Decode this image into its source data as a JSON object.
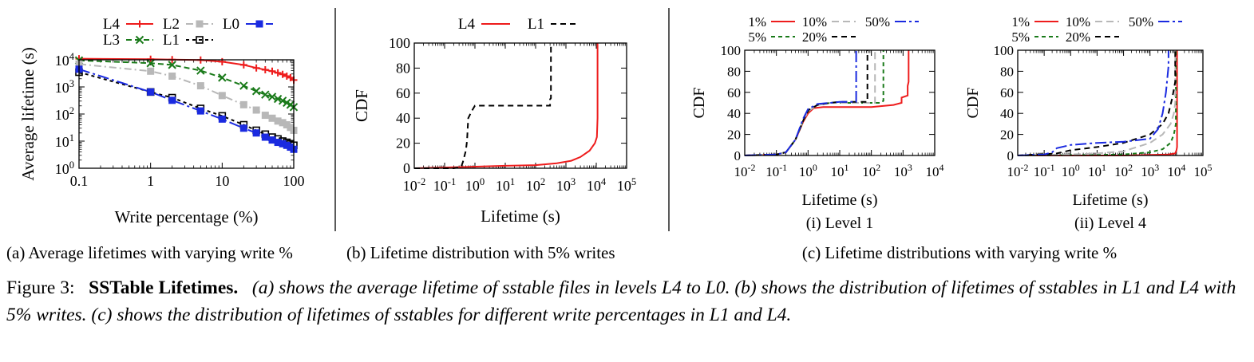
{
  "colors": {
    "L4": "#ee1c1c",
    "L3": "#1a7a1a",
    "L2": "#b8b8b8",
    "L1": "#000000",
    "L0": "#1a2ae0",
    "p1": "#ee1c1c",
    "p5": "#1a7a1a",
    "p10": "#b8b8b8",
    "p20": "#000000",
    "p50": "#1a2ae0"
  },
  "subcaptions": {
    "a": "(a) Average lifetimes with varying write %",
    "b": "(b) Lifetime distribution with 5% writes",
    "c": "(c) Lifetime distributions with varying write %",
    "c1": "(i) Level 1",
    "c2": "(ii) Level 4"
  },
  "figure_caption": {
    "label": "Figure 3:",
    "title": "SSTable Lifetimes.",
    "text": "(a) shows the average lifetime of sstable files in levels L4 to L0. (b) shows the distribution of lifetimes of sstables in L1 and L4 with 5% writes. (c) shows the distribution of lifetimes of sstables for different write percentages in L1 and L4."
  },
  "chart_data": [
    {
      "id": "a",
      "type": "line",
      "title": "",
      "xlabel": "Write percentage (%)",
      "ylabel": "Average lifetime (s)",
      "xscale": "log",
      "yscale": "log",
      "xlim": [
        0.1,
        100
      ],
      "ylim": [
        1,
        10000
      ],
      "xticks": [
        {
          "v": 0.1,
          "t": "0.1"
        },
        {
          "v": 1,
          "t": "1"
        },
        {
          "v": 10,
          "t": "10"
        },
        {
          "v": 100,
          "t": "100"
        }
      ],
      "yticks": [
        {
          "v": 1,
          "b": "10",
          "e": "0"
        },
        {
          "v": 10,
          "b": "10",
          "e": "1"
        },
        {
          "v": 100,
          "b": "10",
          "e": "2"
        },
        {
          "v": 1000,
          "b": "10",
          "e": "3"
        },
        {
          "v": 10000,
          "b": "10",
          "e": "4"
        }
      ],
      "legend_position": "top",
      "series": [
        {
          "name": "L4",
          "color_key": "L4",
          "marker": "plus",
          "dash": "",
          "x": [
            0.1,
            1,
            2,
            5,
            10,
            20,
            30,
            40,
            50,
            60,
            70,
            80,
            90,
            100
          ],
          "y": [
            11000,
            10500,
            10200,
            9800,
            8500,
            6500,
            5000,
            4300,
            3800,
            3300,
            2900,
            2500,
            2200,
            1800
          ]
        },
        {
          "name": "L3",
          "color_key": "L3",
          "marker": "x",
          "dash": "7,4",
          "x": [
            0.1,
            1,
            2,
            5,
            10,
            20,
            30,
            40,
            50,
            60,
            70,
            80,
            90,
            100
          ],
          "y": [
            9500,
            7500,
            6500,
            4000,
            2200,
            1100,
            700,
            520,
            430,
            360,
            310,
            260,
            220,
            180
          ]
        },
        {
          "name": "L2",
          "color_key": "L2",
          "marker": "square-filled",
          "dash": "9,4,2,4",
          "x": [
            0.1,
            1,
            2,
            5,
            10,
            20,
            30,
            40,
            50,
            60,
            70,
            80,
            90,
            100
          ],
          "y": [
            7000,
            3800,
            2500,
            1100,
            480,
            220,
            140,
            90,
            70,
            55,
            48,
            40,
            32,
            25
          ]
        },
        {
          "name": "L1",
          "color_key": "L1",
          "marker": "square-open",
          "dash": "4,4",
          "x": [
            0.1,
            1,
            2,
            5,
            10,
            20,
            30,
            40,
            50,
            60,
            70,
            80,
            90,
            100
          ],
          "y": [
            3500,
            650,
            400,
            160,
            85,
            40,
            25,
            18,
            14,
            12,
            10,
            9,
            8,
            7
          ]
        },
        {
          "name": "L0",
          "color_key": "L0",
          "marker": "square-filled",
          "dash": "14,4,3,4",
          "x": [
            0.1,
            1,
            2,
            5,
            10,
            20,
            30,
            40,
            50,
            60,
            70,
            80,
            90,
            100
          ],
          "y": [
            4500,
            650,
            320,
            130,
            65,
            30,
            20,
            14,
            11,
            9,
            8,
            7,
            6,
            5
          ]
        }
      ]
    },
    {
      "id": "b",
      "type": "line",
      "title": "",
      "xlabel": "Lifetime (s)",
      "ylabel": "CDF",
      "xscale": "log",
      "yscale": "linear",
      "xlim": [
        0.01,
        100000
      ],
      "ylim": [
        0,
        100
      ],
      "xticks": [
        {
          "v": 0.01,
          "b": "10",
          "e": "-2"
        },
        {
          "v": 0.1,
          "b": "10",
          "e": "-1"
        },
        {
          "v": 1,
          "b": "10",
          "e": "0"
        },
        {
          "v": 10,
          "b": "10",
          "e": "1"
        },
        {
          "v": 100,
          "b": "10",
          "e": "2"
        },
        {
          "v": 1000,
          "b": "10",
          "e": "3"
        },
        {
          "v": 10000,
          "b": "10",
          "e": "4"
        },
        {
          "v": 100000,
          "b": "10",
          "e": "5"
        }
      ],
      "yticks": [
        0,
        20,
        40,
        60,
        80,
        100
      ],
      "legend_position": "top",
      "series": [
        {
          "name": "L4",
          "color_key": "L4",
          "dash": "",
          "x": [
            0.01,
            0.5,
            10,
            100,
            500,
            1500,
            3000,
            6000,
            9000,
            10500,
            11000,
            11000
          ],
          "y": [
            0,
            1,
            2,
            2.5,
            4,
            6,
            9,
            14,
            20,
            25,
            40,
            100
          ]
        },
        {
          "name": "L1",
          "color_key": "L1",
          "dash": "7,5",
          "x": [
            0.01,
            0.2,
            0.35,
            0.4,
            0.5,
            0.55,
            0.6,
            0.8,
            1,
            300,
            300,
            320,
            320
          ],
          "y": [
            0,
            0,
            1,
            5,
            14,
            22,
            40,
            46,
            50,
            50,
            55,
            56,
            100
          ]
        }
      ]
    },
    {
      "id": "c1",
      "type": "line",
      "title": "(i) Level 1",
      "xlabel": "Lifetime (s)",
      "ylabel": "CDF",
      "xscale": "log",
      "yscale": "linear",
      "xlim": [
        0.01,
        10000
      ],
      "ylim": [
        0,
        100
      ],
      "xticks": [
        {
          "v": 0.01,
          "b": "10",
          "e": "-2"
        },
        {
          "v": 0.1,
          "b": "10",
          "e": "-1"
        },
        {
          "v": 1,
          "b": "10",
          "e": "0"
        },
        {
          "v": 10,
          "b": "10",
          "e": "1"
        },
        {
          "v": 100,
          "b": "10",
          "e": "2"
        },
        {
          "v": 1000,
          "b": "10",
          "e": "3"
        },
        {
          "v": 10000,
          "b": "10",
          "e": "4"
        }
      ],
      "yticks": [
        0,
        20,
        40,
        60,
        80,
        100
      ],
      "legend": [
        [
          "1%",
          "10%",
          "50%"
        ],
        [
          "5%",
          "20%"
        ]
      ],
      "series": [
        {
          "name": "1%",
          "color_key": "p1",
          "dash": "",
          "x": [
            0.01,
            0.1,
            0.2,
            0.4,
            0.7,
            1,
            1.5,
            3,
            10,
            100,
            500,
            900,
            900,
            1400,
            1400,
            1500,
            1500
          ],
          "y": [
            0,
            1,
            3,
            15,
            32,
            40,
            45,
            46,
            46,
            46,
            48,
            50,
            55,
            57,
            66,
            70,
            100
          ]
        },
        {
          "name": "5%",
          "color_key": "p5",
          "dash": "5,4",
          "x": [
            0.01,
            0.1,
            0.2,
            0.4,
            0.7,
            1,
            2,
            5,
            10,
            100,
            200,
            240,
            240
          ],
          "y": [
            0,
            1,
            3,
            15,
            33,
            42,
            48,
            50,
            50,
            50,
            50,
            52,
            100
          ]
        },
        {
          "name": "10%",
          "color_key": "p10",
          "dash": "9,5",
          "x": [
            0.01,
            0.1,
            0.2,
            0.4,
            0.7,
            1,
            2,
            5,
            10,
            100,
            130,
            130
          ],
          "y": [
            0,
            1,
            3,
            15,
            33,
            42,
            48,
            50,
            50,
            50,
            50,
            100
          ]
        },
        {
          "name": "20%",
          "color_key": "p20",
          "dash": "7,5",
          "x": [
            0.01,
            0.1,
            0.2,
            0.4,
            0.7,
            1,
            2,
            5,
            10,
            70,
            75,
            75
          ],
          "y": [
            0,
            1,
            3,
            15,
            33,
            43,
            48,
            50,
            51,
            51,
            51,
            100
          ]
        },
        {
          "name": "50%",
          "color_key": "p50",
          "dash": "14,4,3,4",
          "x": [
            0.01,
            0.1,
            0.2,
            0.4,
            0.7,
            1,
            2,
            5,
            10,
            33,
            33
          ],
          "y": [
            0,
            1,
            3,
            15,
            35,
            44,
            49,
            50,
            51,
            51,
            100
          ]
        }
      ]
    },
    {
      "id": "c2",
      "type": "line",
      "title": "(ii) Level 4",
      "xlabel": "Lifetime (s)",
      "ylabel": "CDF",
      "xscale": "log",
      "yscale": "linear",
      "xlim": [
        0.01,
        100000
      ],
      "ylim": [
        0,
        100
      ],
      "xticks": [
        {
          "v": 0.01,
          "b": "10",
          "e": "-2"
        },
        {
          "v": 0.1,
          "b": "10",
          "e": "-1"
        },
        {
          "v": 1,
          "b": "10",
          "e": "0"
        },
        {
          "v": 10,
          "b": "10",
          "e": "1"
        },
        {
          "v": 100,
          "b": "10",
          "e": "2"
        },
        {
          "v": 1000,
          "b": "10",
          "e": "3"
        },
        {
          "v": 10000,
          "b": "10",
          "e": "4"
        },
        {
          "v": 100000,
          "b": "10",
          "e": "5"
        }
      ],
      "yticks": [
        0,
        20,
        40,
        60,
        80,
        100
      ],
      "legend": [
        [
          "1%",
          "10%",
          "50%"
        ],
        [
          "5%",
          "20%"
        ]
      ],
      "series": [
        {
          "name": "1%",
          "color_key": "p1",
          "dash": "",
          "x": [
            0.01,
            100,
            1000,
            5000,
            9000,
            10000,
            10500,
            10500
          ],
          "y": [
            0,
            0,
            0.5,
            1,
            2,
            5,
            8,
            100
          ]
        },
        {
          "name": "5%",
          "color_key": "p5",
          "dash": "5,4",
          "x": [
            0.01,
            10,
            100,
            1000,
            3000,
            6000,
            8000,
            9500,
            9500
          ],
          "y": [
            0,
            0.5,
            1,
            3,
            6,
            12,
            20,
            30,
            100
          ]
        },
        {
          "name": "10%",
          "color_key": "p10",
          "dash": "9,5",
          "x": [
            0.01,
            1,
            10,
            100,
            1000,
            3000,
            6000,
            8000,
            9000,
            9000
          ],
          "y": [
            0,
            1,
            2,
            4,
            12,
            20,
            30,
            40,
            50,
            100
          ]
        },
        {
          "name": "20%",
          "color_key": "p20",
          "dash": "7,5",
          "x": [
            0.01,
            0.3,
            1,
            10,
            100,
            1000,
            3000,
            5000,
            7000,
            9000,
            9000
          ],
          "y": [
            0,
            2,
            5,
            8,
            12,
            20,
            30,
            40,
            55,
            70,
            100
          ]
        },
        {
          "name": "50%",
          "color_key": "p50",
          "dash": "14,4,3,4",
          "x": [
            0.01,
            0.1,
            0.2,
            0.3,
            1,
            10,
            100,
            1000,
            2000,
            3000,
            4000,
            5000,
            5000
          ],
          "y": [
            0,
            1,
            3,
            7,
            10,
            12,
            13,
            16,
            25,
            40,
            60,
            85,
            100
          ]
        }
      ]
    }
  ]
}
